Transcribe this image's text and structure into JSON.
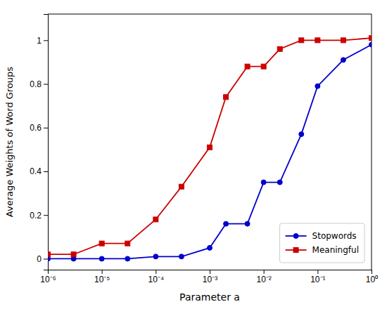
{
  "chart_data": {
    "type": "line",
    "xlabel": "Parameter a",
    "ylabel": "Average Weights of Word Groups",
    "log": "x",
    "grid": false,
    "legend": "lower right",
    "x": [
      1e-06,
      3e-06,
      1e-05,
      3e-05,
      0.0001,
      0.0003,
      0.001,
      0.002,
      0.005,
      0.01,
      0.02,
      0.05,
      0.1,
      0.3,
      1
    ],
    "series": [
      {
        "name": "Stopwords",
        "color": "#0000cc",
        "marker": "circle",
        "line_style": "solid",
        "values": [
          0.0,
          0.0,
          0.0,
          0.0,
          0.01,
          0.01,
          0.05,
          0.16,
          0.16,
          0.35,
          0.35,
          0.57,
          0.79,
          0.91,
          0.98
        ]
      },
      {
        "name": "Meaningful",
        "color": "#cc0000",
        "marker": "square",
        "line_style": "solid",
        "values": [
          0.02,
          0.02,
          0.07,
          0.07,
          0.18,
          0.33,
          0.51,
          0.74,
          0.88,
          0.88,
          0.96,
          1.0,
          1.0,
          1.0,
          1.01
        ]
      }
    ],
    "xlim": [
      1e-06,
      1
    ],
    "xticks": [
      {
        "value": 1e-06,
        "label": "10⁻⁶"
      },
      {
        "value": 1e-05,
        "label": "10⁻⁵"
      },
      {
        "value": 0.0001,
        "label": "10⁻⁴"
      },
      {
        "value": 0.001,
        "label": "10⁻³"
      },
      {
        "value": 0.01,
        "label": "10⁻²"
      },
      {
        "value": 0.1,
        "label": "10⁻¹"
      },
      {
        "value": 1,
        "label": "10⁰"
      }
    ],
    "ylim": [
      -0.05,
      1.12
    ],
    "yticks": [
      0,
      0.2,
      0.4,
      0.6,
      0.8,
      1
    ]
  }
}
